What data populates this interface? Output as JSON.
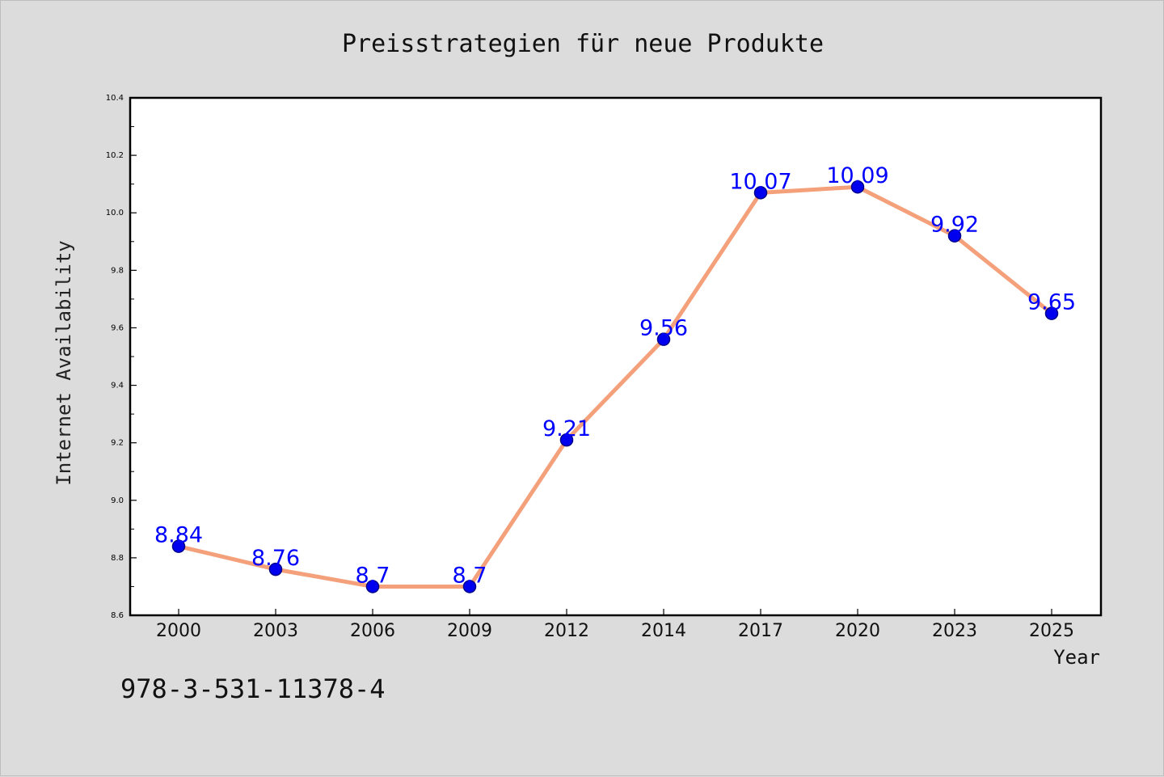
{
  "chart_data": {
    "type": "line",
    "title": "Preisstrategien für neue Produkte",
    "xlabel": "Year",
    "ylabel": "Internet Availability",
    "categories": [
      "2000",
      "2003",
      "2006",
      "2009",
      "2012",
      "2014",
      "2017",
      "2020",
      "2023",
      "2025"
    ],
    "series": [
      {
        "values": [
          8.84,
          8.76,
          8.7,
          8.7,
          9.21,
          9.56,
          10.07,
          10.09,
          9.92,
          9.65
        ]
      }
    ],
    "data_labels": [
      "8.84",
      "8.76",
      "8.7",
      "8.7",
      "9.21",
      "9.56",
      "10.07",
      "10.09",
      "9.92",
      "9.65"
    ],
    "ylim": [
      8.6,
      10.4
    ],
    "y_ticks": [
      "8.6",
      "8.8",
      "9.0",
      "9.2",
      "9.4",
      "9.6",
      "9.8",
      "10.0",
      "10.2",
      "10.4"
    ],
    "grid": false,
    "colors": {
      "line": "#f4a07a",
      "marker": "#0000ee",
      "marker_edge": "#00008b",
      "label": "#0000ff",
      "plot_bg": "#ffffff",
      "figure_bg": "#dcdcdc"
    }
  },
  "footer": {
    "isbn": "978-3-531-11378-4"
  }
}
